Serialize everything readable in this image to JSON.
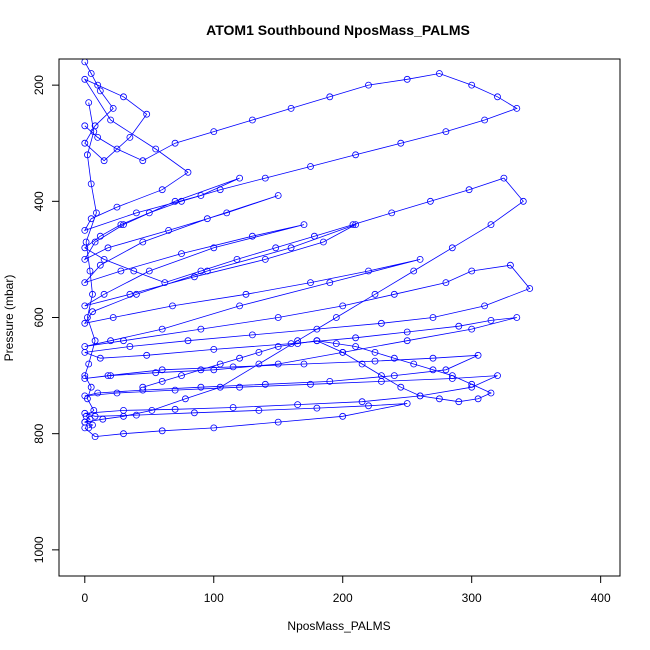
{
  "chart_data": {
    "type": "scatter",
    "title": "ATOM1 Southbound NposMass_PALMS",
    "xlabel": "NposMass_PALMS",
    "ylabel": "Pressure (mbar)",
    "xlim": [
      -20,
      415
    ],
    "ylim": [
      1045,
      155
    ],
    "y_reversed": true,
    "grid": false,
    "marker": "open-circle",
    "connect_points": true,
    "colors": {
      "series": "#0000ff",
      "axes": "#000000",
      "background": "#ffffff"
    },
    "x_ticks": [
      0,
      100,
      200,
      300,
      400
    ],
    "y_ticks": [
      200,
      400,
      600,
      800,
      1000
    ],
    "x_tick_labels": [
      "0",
      "100",
      "200",
      "300",
      "400"
    ],
    "y_tick_labels": [
      "200",
      "400",
      "600",
      "800",
      "1000"
    ],
    "series": [
      {
        "x": [
          0,
          5,
          12,
          22,
          8,
          0,
          15,
          35,
          48,
          30,
          10,
          0,
          20,
          55,
          80,
          60,
          25,
          5,
          0,
          40,
          90,
          120,
          70,
          30,
          8,
          0,
          18,
          65,
          110,
          150,
          95,
          45,
          12,
          0,
          28,
          75,
          130,
          170,
          100,
          50,
          15,
          0,
          35,
          85,
          140,
          185,
          210,
          160,
          95,
          40,
          6,
          0,
          22,
          68,
          125,
          175,
          220,
          260,
          190,
          120,
          60,
          20,
          0,
          30,
          90,
          150,
          200,
          240,
          280,
          300,
          330,
          345,
          310,
          270,
          230,
          180,
          130,
          80,
          35,
          0,
          12,
          48,
          100,
          160,
          210,
          250,
          290,
          315,
          335,
          300,
          250,
          200,
          150,
          100,
          55,
          20,
          0,
          18,
          60,
          115,
          170,
          225,
          270,
          305,
          280,
          240,
          190,
          140,
          90,
          45,
          10,
          0,
          25,
          70,
          120,
          175,
          230,
          285,
          320,
          300,
          260,
          215,
          165,
          115,
          70,
          30,
          0,
          8,
          40,
          85,
          135,
          180,
          220,
          250,
          200,
          150,
          100,
          60,
          30,
          8,
          0
        ],
        "y": [
          160,
          180,
          210,
          240,
          270,
          300,
          330,
          290,
          250,
          220,
          200,
          190,
          260,
          310,
          350,
          380,
          410,
          430,
          450,
          420,
          390,
          360,
          400,
          440,
          470,
          500,
          480,
          450,
          420,
          390,
          430,
          470,
          510,
          540,
          520,
          490,
          460,
          440,
          480,
          520,
          560,
          580,
          560,
          530,
          500,
          470,
          440,
          480,
          520,
          560,
          590,
          610,
          600,
          580,
          560,
          540,
          520,
          500,
          540,
          580,
          620,
          640,
          650,
          640,
          620,
          600,
          580,
          560,
          540,
          520,
          510,
          550,
          580,
          600,
          610,
          620,
          630,
          640,
          650,
          660,
          670,
          665,
          655,
          645,
          635,
          625,
          615,
          605,
          600,
          620,
          640,
          660,
          680,
          690,
          695,
          700,
          705,
          700,
          690,
          685,
          680,
          675,
          670,
          665,
          690,
          700,
          710,
          715,
          720,
          725,
          730,
          735,
          730,
          725,
          720,
          715,
          710,
          705,
          700,
          720,
          735,
          745,
          750,
          755,
          758,
          760,
          765,
          770,
          768,
          764,
          760,
          756,
          752,
          748,
          770,
          780,
          790,
          795,
          800,
          805,
          790
        ]
      },
      {
        "x": [
          0,
          10,
          25,
          45,
          70,
          100,
          130,
          160,
          190,
          220,
          250,
          275,
          300,
          320,
          335,
          310,
          280,
          245,
          210,
          175,
          140,
          105,
          75,
          50,
          28,
          12,
          0,
          15,
          38,
          62,
          90,
          118,
          148,
          178,
          208,
          238,
          268,
          298,
          325,
          340,
          315,
          285,
          255,
          225,
          195,
          165,
          135,
          105,
          78,
          52,
          30,
          14,
          0
        ],
        "y": [
          270,
          290,
          310,
          330,
          300,
          280,
          260,
          240,
          220,
          200,
          190,
          180,
          200,
          220,
          240,
          260,
          280,
          300,
          320,
          340,
          360,
          380,
          400,
          420,
          440,
          460,
          480,
          500,
          520,
          540,
          520,
          500,
          480,
          460,
          440,
          420,
          400,
          380,
          360,
          400,
          440,
          480,
          520,
          560,
          600,
          640,
          680,
          720,
          740,
          760,
          770,
          775,
          780
        ]
      },
      {
        "x": [
          180,
          200,
          215,
          230,
          245,
          260,
          275,
          290,
          305,
          315,
          300,
          285,
          270,
          255,
          240,
          225,
          210,
          195,
          180,
          165,
          150,
          135,
          120,
          105,
          90,
          75,
          60,
          45
        ],
        "y": [
          640,
          660,
          680,
          700,
          720,
          735,
          740,
          745,
          740,
          730,
          715,
          700,
          690,
          680,
          670,
          660,
          650,
          645,
          640,
          645,
          650,
          660,
          670,
          680,
          690,
          700,
          710,
          720
        ]
      },
      {
        "x": [
          3,
          7,
          2,
          5,
          9,
          1,
          4,
          6,
          2,
          8,
          3,
          0,
          5,
          2,
          7,
          1,
          4,
          0,
          6,
          3
        ],
        "y": [
          230,
          280,
          320,
          370,
          420,
          470,
          520,
          560,
          600,
          640,
          680,
          700,
          720,
          740,
          760,
          770,
          775,
          780,
          785,
          790
        ]
      }
    ]
  }
}
